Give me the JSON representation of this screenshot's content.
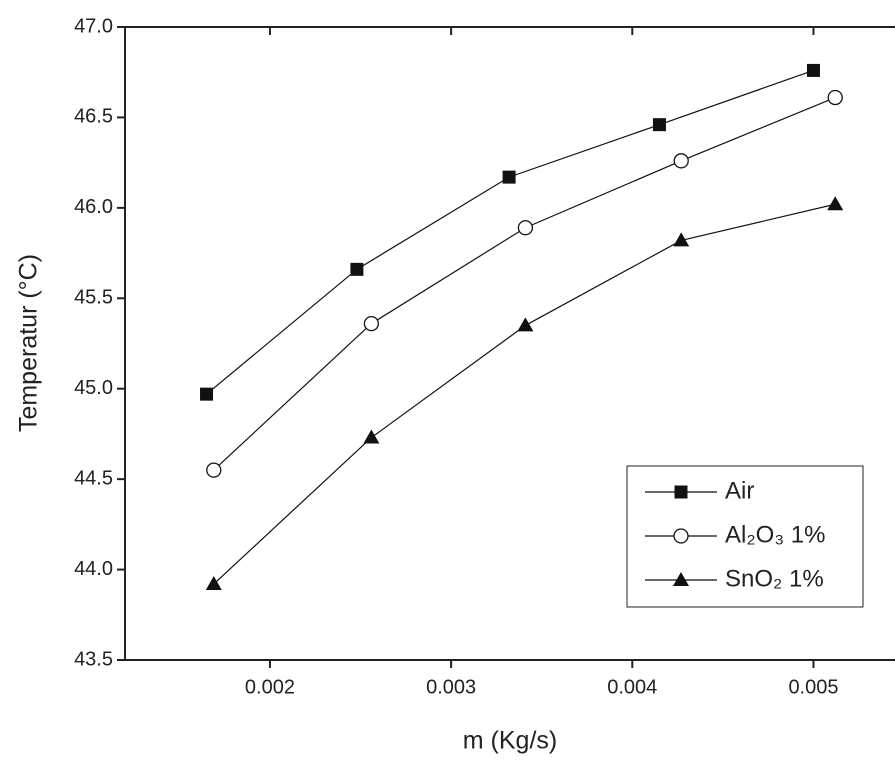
{
  "chart_data": {
    "type": "line",
    "x_label": "m (Kg/s)",
    "y_label": "Temperatur (°C)",
    "xlim": [
      0.0012,
      0.00545
    ],
    "xticks": [
      0.002,
      0.003,
      0.004,
      0.005
    ],
    "ylim": [
      43.5,
      47.0
    ],
    "yticks": [
      43.5,
      {
        "value": 44,
        "label": "44.0"
      },
      44.5,
      {
        "value": 45,
        "label": "45.0"
      },
      45.5,
      {
        "value": 46,
        "label": "46.0"
      },
      46.5,
      {
        "value": 47,
        "label": "47.0"
      }
    ],
    "legend_position": "lower right",
    "series": [
      {
        "name": "Air",
        "color": "#111111",
        "marker": "square",
        "x": [
          0.00165,
          0.00248,
          0.00332,
          0.00415,
          0.005
        ],
        "values": [
          44.97,
          45.66,
          46.17,
          46.46,
          46.76
        ]
      },
      {
        "name": "Al₂O₃ 1%",
        "color": "#111111",
        "marker": "circle",
        "x": [
          0.00169,
          0.00256,
          0.00341,
          0.00427,
          0.00512
        ],
        "values": [
          44.55,
          45.36,
          45.89,
          46.26,
          46.61
        ]
      },
      {
        "name": "SnO₂ 1%",
        "color": "#111111",
        "marker": "triangle",
        "x": [
          0.00169,
          0.00256,
          0.00341,
          0.00427,
          0.00512
        ],
        "values": [
          43.92,
          44.73,
          45.35,
          45.82,
          46.02
        ]
      }
    ]
  }
}
